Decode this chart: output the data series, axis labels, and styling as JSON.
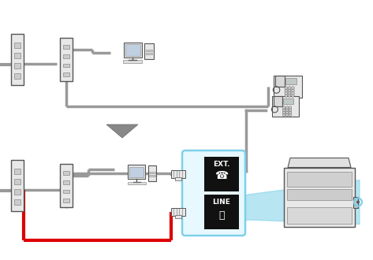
{
  "bg_color": "#ffffff",
  "gray_cable": "#999999",
  "gray_device": "#aaaaaa",
  "dark_gray": "#555555",
  "mid_gray": "#888888",
  "light_gray": "#cccccc",
  "very_light_gray": "#e8e8e8",
  "red": "#dd0000",
  "sky_blue": "#7dd0e8",
  "light_blue_fill": "#d0f0ff",
  "black": "#111111",
  "white": "#ffffff",
  "ext_label": "EXT.",
  "line_label": "LINE",
  "arrow_color": "#888888",
  "cable_lw": 2.5,
  "red_cable_lw": 2.5
}
